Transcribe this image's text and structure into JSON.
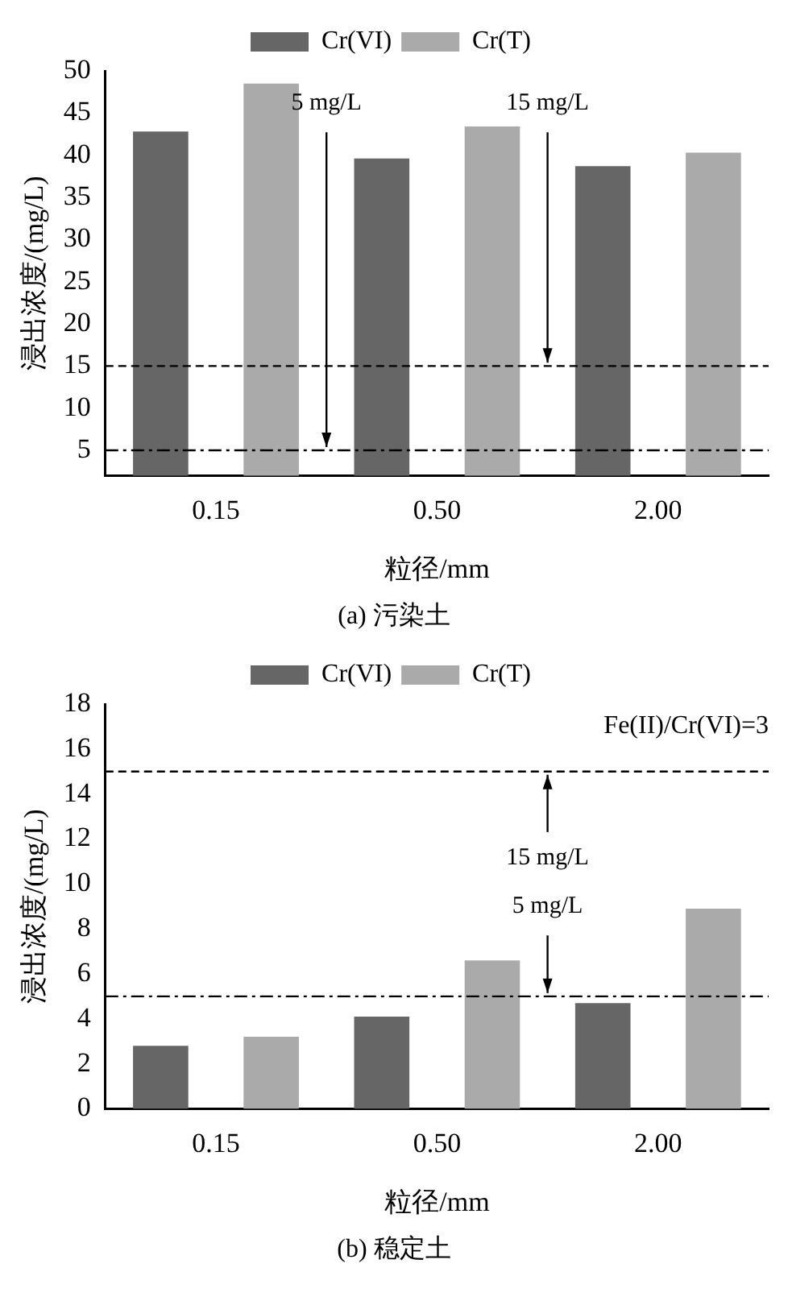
{
  "chart_data": [
    {
      "type": "bar",
      "title": "(a) 污染土",
      "xlabel": "粒径/mm",
      "ylabel": "浸出浓度/(mg/L)",
      "categories": [
        "0.15",
        "0.50",
        "2.00"
      ],
      "series": [
        {
          "name": "Cr(VI)",
          "color": "#666666",
          "values": [
            42.8,
            39.6,
            38.7
          ]
        },
        {
          "name": "Cr(T)",
          "color": "#aaaaaa",
          "values": [
            48.5,
            43.4,
            40.3
          ]
        }
      ],
      "ylim": [
        2,
        50
      ],
      "yticks": [
        5,
        10,
        15,
        20,
        25,
        30,
        35,
        40,
        45,
        50
      ],
      "ref_lines": [
        {
          "axis": "y",
          "value": 5,
          "label": "5 mg/L",
          "line_style": "dashdot"
        },
        {
          "axis": "y",
          "value": 15,
          "label": "15 mg/L",
          "line_style": "dashed"
        }
      ],
      "legend": "top",
      "grid": false
    },
    {
      "type": "bar",
      "title": "(b) 稳定土",
      "xlabel": "粒径/mm",
      "ylabel": "浸出浓度/(mg/L)",
      "categories": [
        "0.15",
        "0.50",
        "2.00"
      ],
      "series": [
        {
          "name": "Cr(VI)",
          "color": "#666666",
          "values": [
            2.8,
            4.1,
            4.7
          ]
        },
        {
          "name": "Cr(T)",
          "color": "#aaaaaa",
          "values": [
            3.2,
            6.6,
            8.9
          ]
        }
      ],
      "ylim": [
        0,
        18
      ],
      "yticks": [
        0,
        2,
        4,
        6,
        8,
        10,
        12,
        14,
        16,
        18
      ],
      "ref_lines": [
        {
          "axis": "y",
          "value": 15,
          "label": "15 mg/L",
          "line_style": "dashed"
        },
        {
          "axis": "y",
          "value": 5,
          "label": "5 mg/L",
          "line_style": "dashdot"
        }
      ],
      "annotations": [
        "Fe(II)/Cr(VI)=3"
      ],
      "legend": "top",
      "grid": false
    }
  ]
}
